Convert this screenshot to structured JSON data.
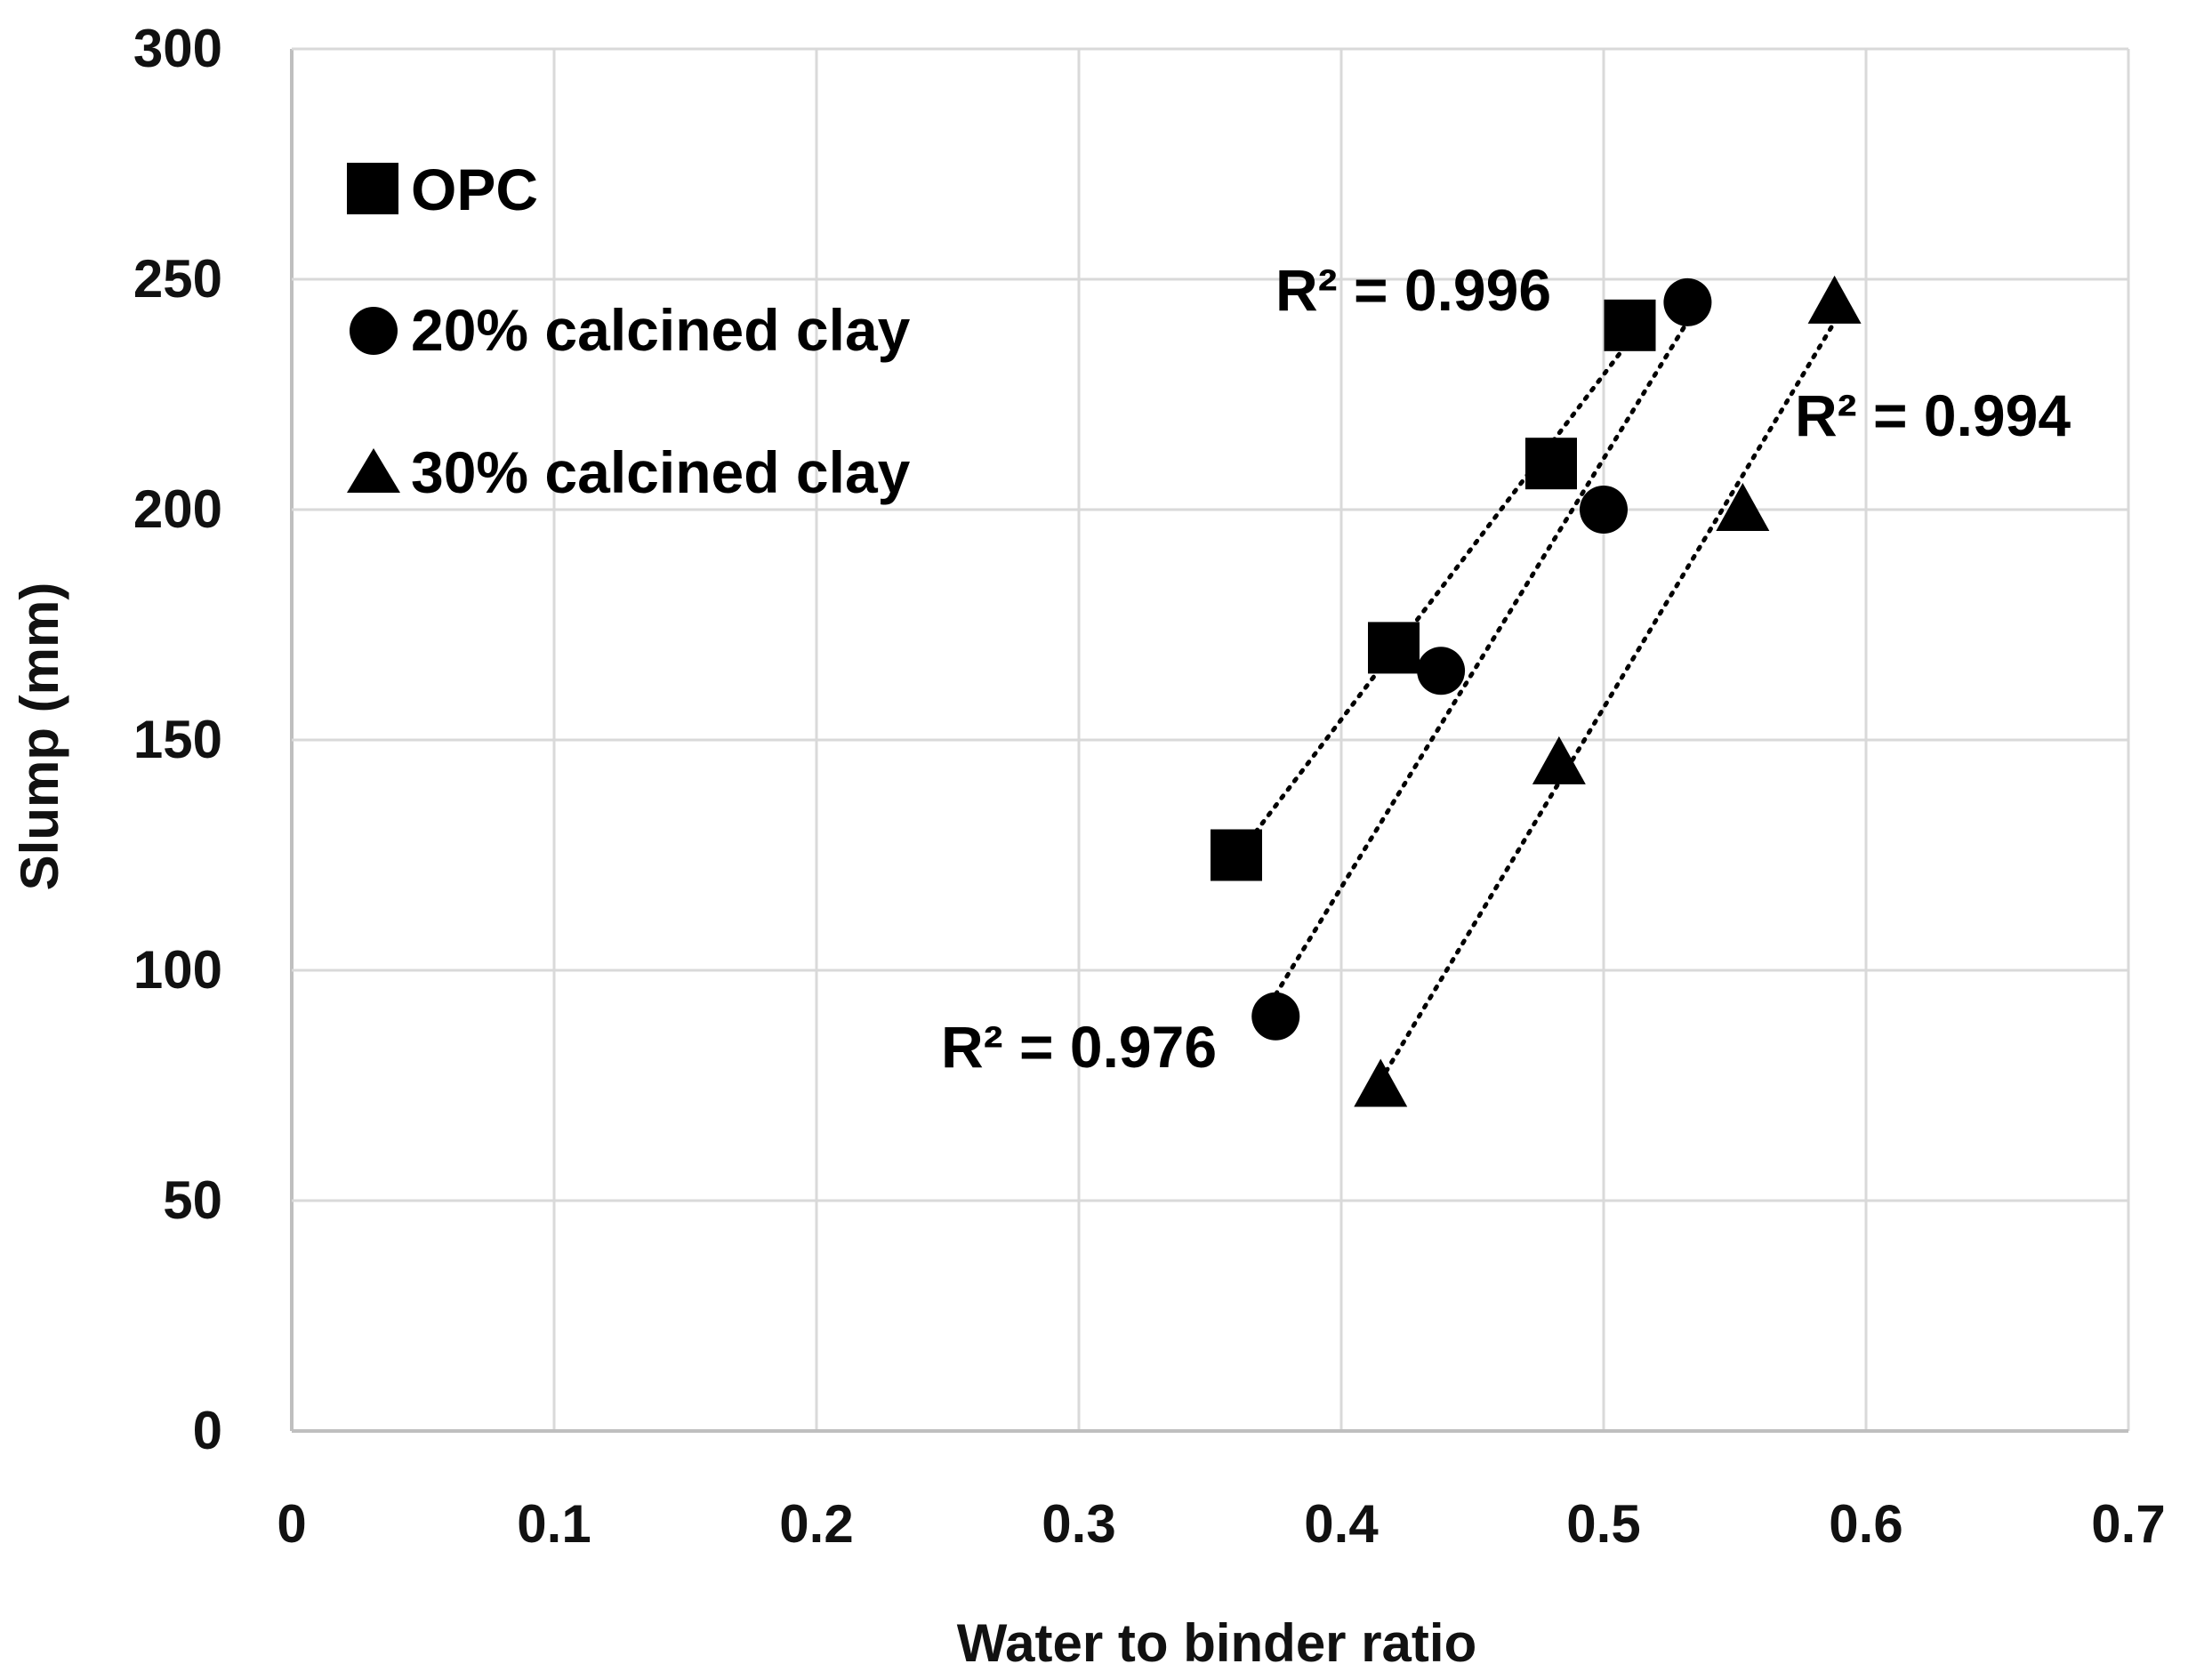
{
  "chart_data": {
    "type": "scatter",
    "title": "",
    "xlabel": "Water to binder ratio",
    "ylabel": "Slump (mm)",
    "xlim": [
      0,
      0.7
    ],
    "ylim": [
      0,
      300
    ],
    "xticks": [
      0,
      0.1,
      0.2,
      0.3,
      0.4,
      0.5,
      0.6,
      0.7
    ],
    "xtick_labels": [
      "0",
      "0.1",
      "0.2",
      "0.3",
      "0.4",
      "0.5",
      "0.6",
      "0.7"
    ],
    "yticks": [
      0,
      50,
      100,
      150,
      200,
      250,
      300
    ],
    "ytick_labels": [
      "0",
      "50",
      "100",
      "150",
      "200",
      "250",
      "300"
    ],
    "grid": true,
    "legend_position": "top-left",
    "series": [
      {
        "name": "OPC",
        "marker": "square",
        "trendline": "linear",
        "r2_label": "R² = 0.996",
        "points": [
          {
            "x": 0.36,
            "y": 125
          },
          {
            "x": 0.42,
            "y": 170
          },
          {
            "x": 0.48,
            "y": 210
          },
          {
            "x": 0.51,
            "y": 240
          }
        ]
      },
      {
        "name": "20% calcined clay",
        "marker": "circle",
        "trendline": "linear",
        "r2_label": "R² = 0.976",
        "points": [
          {
            "x": 0.375,
            "y": 90
          },
          {
            "x": 0.438,
            "y": 165
          },
          {
            "x": 0.5,
            "y": 200
          },
          {
            "x": 0.532,
            "y": 245
          }
        ]
      },
      {
        "name": "30% calcined clay",
        "marker": "triangle",
        "trendline": "linear",
        "r2_label": "R² = 0.994",
        "points": [
          {
            "x": 0.415,
            "y": 75
          },
          {
            "x": 0.483,
            "y": 145
          },
          {
            "x": 0.553,
            "y": 200
          },
          {
            "x": 0.588,
            "y": 245
          }
        ]
      }
    ]
  },
  "colors": {
    "marker": "#000000",
    "grid": "#d9d9d9",
    "axis": "#bfbfbf",
    "text": "#111111"
  }
}
